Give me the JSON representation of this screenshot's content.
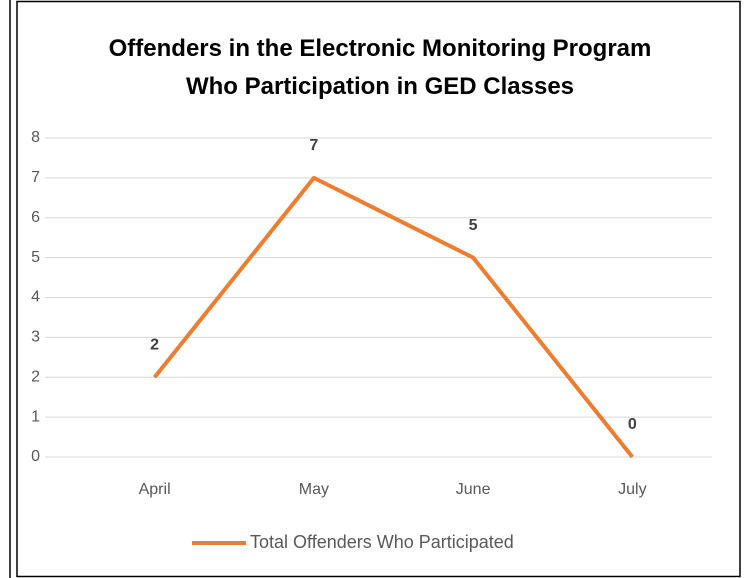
{
  "chart_data": {
    "type": "line",
    "title": "Offenders in the Electronic Monitoring Program Who Participation in GED Classes",
    "categories": [
      "April",
      "May",
      "June",
      "July"
    ],
    "series": [
      {
        "name": "Total Offenders Who Participated",
        "color": "#ed7d31",
        "values": [
          2,
          7,
          5,
          0
        ]
      }
    ],
    "ylim": [
      0,
      8
    ],
    "yticks": [
      0,
      1,
      2,
      3,
      4,
      5,
      6,
      7,
      8
    ],
    "grid": true,
    "legend": "bottom",
    "data_labels": true
  }
}
